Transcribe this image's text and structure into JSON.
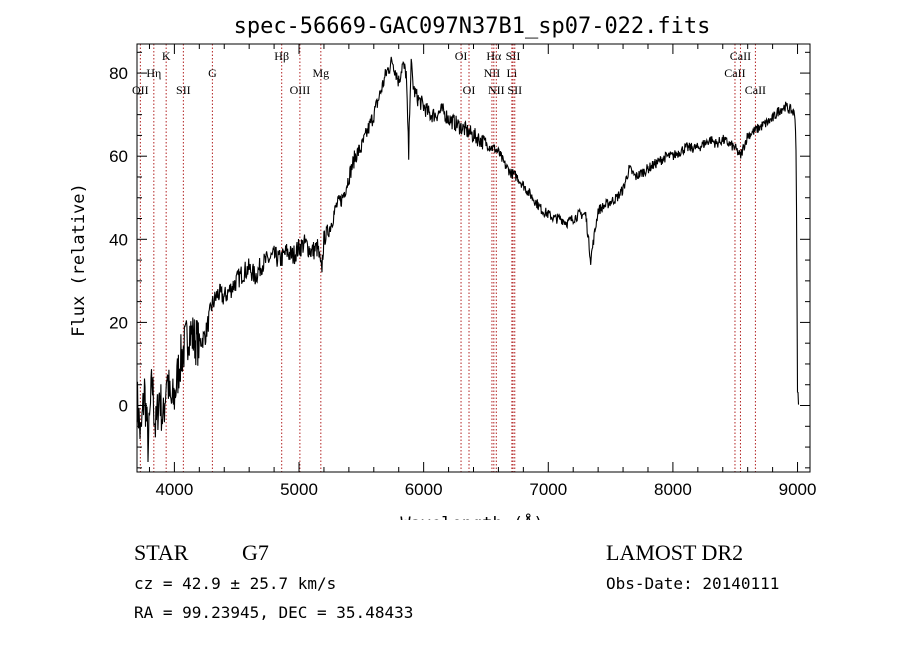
{
  "chart_data": {
    "type": "line",
    "title": "spec-56669-GAC097N37B1_sp07-022.fits",
    "xlabel": "Wavelength (Å)",
    "ylabel": "Flux (relative)",
    "xlim": [
      3700,
      9100
    ],
    "ylim": [
      -16,
      87
    ],
    "xticks": [
      4000,
      5000,
      6000,
      7000,
      8000,
      9000
    ],
    "yticks": [
      0,
      20,
      40,
      60,
      80
    ],
    "grid": false,
    "series": [
      {
        "x": [
          3700,
          3730,
          3760,
          3790,
          3820,
          3850,
          3880,
          3910,
          3940,
          3970,
          4000,
          4040,
          4080,
          4120,
          4160,
          4200,
          4250,
          4300,
          4350,
          4400,
          4450,
          4500,
          4550,
          4600,
          4650,
          4700,
          4750,
          4800,
          4850,
          4900,
          4950,
          5000,
          5050,
          5100,
          5150,
          5180,
          5200,
          5250,
          5300,
          5350,
          5400,
          5450,
          5500,
          5550,
          5600,
          5650,
          5700,
          5750,
          5780,
          5800,
          5830,
          5860,
          5880,
          5890,
          5900,
          5920,
          5950,
          6000,
          6050,
          6100,
          6150,
          6200,
          6250,
          6300,
          6350,
          6400,
          6450,
          6500,
          6550,
          6563,
          6600,
          6650,
          6700,
          6750,
          6800,
          6850,
          6900,
          6950,
          7000,
          7050,
          7100,
          7150,
          7200,
          7250,
          7300,
          7340,
          7400,
          7450,
          7500,
          7550,
          7600,
          7650,
          7700,
          7750,
          7800,
          7850,
          7900,
          7950,
          8000,
          8050,
          8100,
          8150,
          8200,
          8250,
          8300,
          8350,
          8400,
          8450,
          8498,
          8542,
          8600,
          8650,
          8700,
          8750,
          8800,
          8850,
          8900,
          8950,
          8980,
          8990,
          9000,
          9010
        ],
        "y": [
          2,
          -8,
          4,
          -10,
          6,
          -6,
          3,
          -4,
          8,
          0,
          2,
          10,
          14,
          18,
          16,
          15,
          17,
          24,
          27,
          26,
          28,
          30,
          32,
          33,
          31,
          34,
          35,
          36,
          35,
          37,
          36,
          38,
          39,
          37,
          38,
          32,
          40,
          43,
          48,
          50,
          55,
          60,
          62,
          66,
          70,
          75,
          80,
          83,
          80,
          78,
          82,
          80,
          60,
          75,
          82,
          76,
          74,
          72,
          70,
          70,
          71,
          69,
          68,
          67,
          66,
          65,
          64,
          63,
          62,
          62,
          61,
          58,
          56,
          55,
          53,
          51,
          49,
          47,
          46,
          45,
          45,
          44,
          45,
          46,
          46,
          35,
          47,
          48,
          49,
          50,
          52,
          57,
          55,
          56,
          57,
          58,
          59,
          60,
          60,
          61,
          62,
          62,
          62,
          63,
          64,
          63,
          64,
          63,
          62,
          60,
          65,
          66,
          67,
          68,
          69,
          71,
          72,
          71,
          70,
          60,
          3,
          1
        ]
      }
    ],
    "lines": [
      {
        "name": "OII",
        "wl": 3727,
        "pos": "bottom"
      },
      {
        "name": "Hη",
        "wl": 3835,
        "pos": "mid"
      },
      {
        "name": "K",
        "wl": 3934,
        "pos": "top"
      },
      {
        "name": "SII",
        "wl": 4072,
        "pos": "bottom"
      },
      {
        "name": "G",
        "wl": 4305,
        "pos": "mid"
      },
      {
        "name": "Hβ",
        "wl": 4861,
        "pos": "top"
      },
      {
        "name": "OIII",
        "wl": 5007,
        "pos": "bottom"
      },
      {
        "name": "Mg",
        "wl": 5175,
        "pos": "mid"
      },
      {
        "name": "OI",
        "wl": 6300,
        "pos": "top"
      },
      {
        "name": "OI",
        "wl": 6364,
        "pos": "bottom"
      },
      {
        "name": "NII",
        "wl": 6548,
        "pos": "mid"
      },
      {
        "name": "Hα",
        "wl": 6563,
        "pos": "top"
      },
      {
        "name": "NII",
        "wl": 6583,
        "pos": "bottom"
      },
      {
        "name": "Li",
        "wl": 6708,
        "pos": "mid"
      },
      {
        "name": "SII",
        "wl": 6717,
        "pos": "top"
      },
      {
        "name": "SII",
        "wl": 6731,
        "pos": "bottom"
      },
      {
        "name": "CaII",
        "wl": 8498,
        "pos": "mid"
      },
      {
        "name": "CaII",
        "wl": 8542,
        "pos": "top"
      },
      {
        "name": "CaII",
        "wl": 8662,
        "pos": "bottom"
      }
    ]
  },
  "info": {
    "object_class": "STAR",
    "subclass": "G7",
    "survey": "LAMOST DR2",
    "redshift": "cz = 42.9 ± 25.7 km/s",
    "obs_date": "Obs-Date: 20140111",
    "coords": "RA =  99.23945, DEC =  35.48433"
  },
  "colors": {
    "spectrum": "#000000",
    "line_marker": "#b22222",
    "axes": "#000000",
    "background": "#ffffff"
  }
}
